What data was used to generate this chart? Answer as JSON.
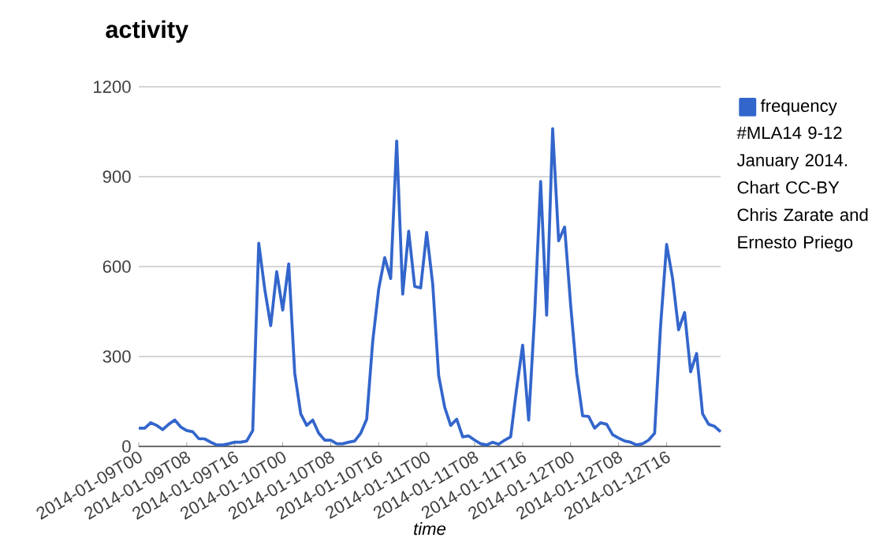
{
  "chart_data": {
    "type": "line",
    "title": "activity",
    "xlabel": "time",
    "categories": [
      "2014-01-09T00",
      null,
      null,
      null,
      null,
      null,
      null,
      null,
      "2014-01-09T08",
      null,
      null,
      null,
      null,
      null,
      null,
      null,
      "2014-01-09T16",
      null,
      null,
      null,
      null,
      null,
      null,
      null,
      "2014-01-10T00",
      null,
      null,
      null,
      null,
      null,
      null,
      null,
      "2014-01-10T08",
      null,
      null,
      null,
      null,
      null,
      null,
      null,
      "2014-01-10T16",
      null,
      null,
      null,
      null,
      null,
      null,
      null,
      "2014-01-11T00",
      null,
      null,
      null,
      null,
      null,
      null,
      null,
      "2014-01-11T08",
      null,
      null,
      null,
      null,
      null,
      null,
      null,
      "2014-01-11T16",
      null,
      null,
      null,
      null,
      null,
      null,
      null,
      "2014-01-12T00",
      null,
      null,
      null,
      null,
      null,
      null,
      null,
      "2014-01-12T08",
      null,
      null,
      null,
      null,
      null,
      null,
      null,
      "2014-01-12T16",
      null,
      null,
      null,
      null,
      null,
      null,
      null,
      null,
      null
    ],
    "series": [
      {
        "name": "frequency",
        "color": "#3366cc",
        "values": [
          61,
          61,
          79,
          70,
          56,
          74,
          88,
          65,
          53,
          49,
          26,
          25,
          14,
          5,
          5,
          9,
          14,
          14,
          18,
          53,
          678,
          525,
          403,
          583,
          455,
          609,
          245,
          109,
          70,
          88,
          44,
          21,
          21,
          9,
          9,
          14,
          18,
          44,
          91,
          350,
          525,
          630,
          560,
          1019,
          508,
          718,
          534,
          529,
          714,
          543,
          236,
          131,
          70,
          91,
          32,
          35,
          21,
          9,
          5,
          14,
          7,
          21,
          32,
          193,
          338,
          88,
          438,
          884,
          438,
          1060,
          686,
          732,
          473,
          245,
          102,
          100,
          61,
          79,
          74,
          39,
          28,
          18,
          14,
          5,
          9,
          21,
          44,
          403,
          674,
          560,
          389,
          447,
          249,
          310,
          109,
          74,
          67,
          49
        ]
      }
    ],
    "ylim": [
      0,
      1200
    ],
    "yticks": [
      0,
      300,
      600,
      900,
      1200
    ],
    "grid": "y",
    "legend": "right",
    "annotations": [
      "#MLA14 9-12 January 2014. Chart CC-BY Chris Zarate and Ernesto Priego"
    ]
  }
}
